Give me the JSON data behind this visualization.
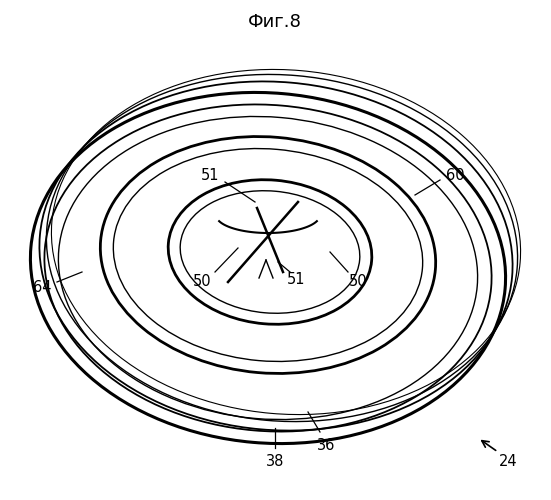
{
  "caption": "Фиг.8",
  "background_color": "#ffffff",
  "line_color": "#000000",
  "fig_width": 5.51,
  "fig_height": 5.0,
  "dpi": 100
}
